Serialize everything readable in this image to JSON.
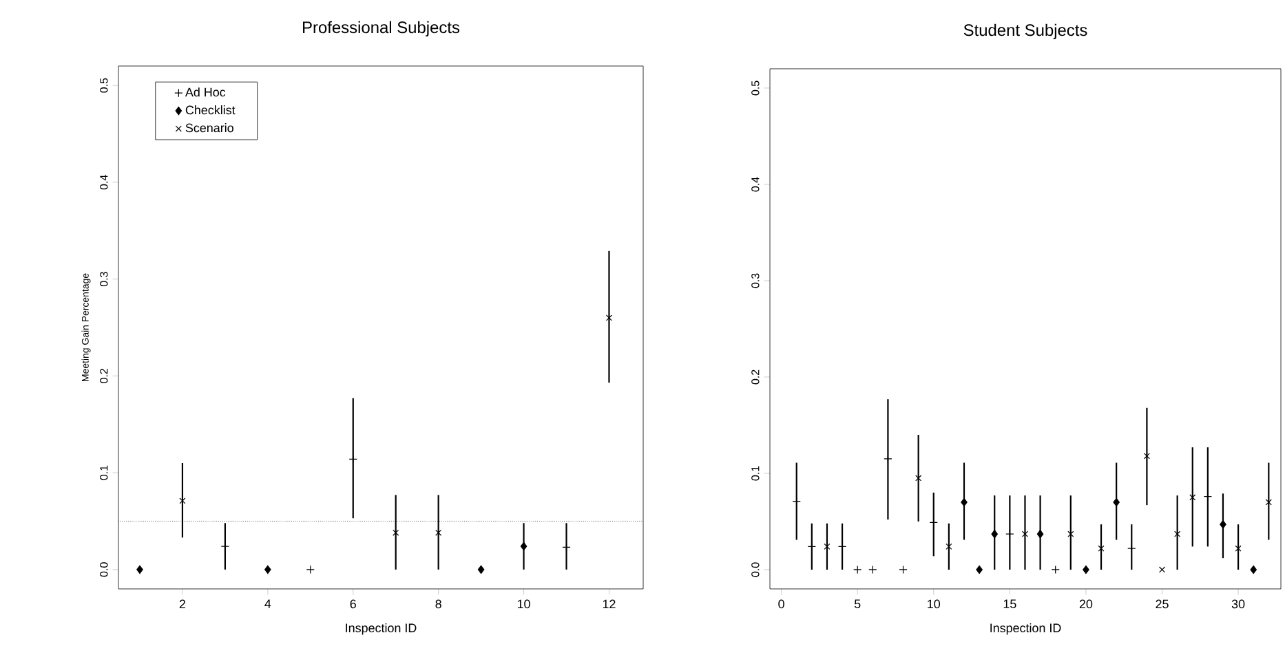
{
  "chart_data": [
    {
      "type": "scatter",
      "title": "Professional Subjects",
      "xlabel": "Inspection ID",
      "ylabel": "Meeting Gain Percentage",
      "xlim": [
        0.5,
        12.8
      ],
      "ylim": [
        -0.02,
        0.52
      ],
      "xticks": [
        2,
        4,
        6,
        8,
        10,
        12
      ],
      "yticks": [
        {
          "value": 0,
          "label": "0.0"
        },
        0.1,
        0.2,
        0.3,
        0.4,
        0.5
      ],
      "legend": "top left",
      "ref_lines": [
        {
          "axis": "y",
          "value": 0.05,
          "line_style": "dotted"
        }
      ],
      "series": [
        {
          "name": "Ad Hoc",
          "color": "#000000",
          "marker": "plus",
          "x": [
            3,
            5,
            6,
            11
          ],
          "values": [
            0.024,
            0,
            0.114,
            0.023
          ],
          "errors": [
            [
              0,
              0.048
            ],
            null,
            [
              0.053,
              0.177
            ],
            [
              0,
              0.048
            ]
          ]
        },
        {
          "name": "Checklist",
          "color": "#000000",
          "marker": "diamond",
          "x": [
            1,
            4,
            9,
            10
          ],
          "values": [
            0,
            0,
            0,
            0.024
          ],
          "errors": [
            null,
            null,
            null,
            [
              0,
              0.048
            ]
          ]
        },
        {
          "name": "Scenario",
          "color": "#000000",
          "marker": "cross",
          "x": [
            2,
            7,
            8,
            12
          ],
          "values": [
            0.071,
            0.038,
            0.038,
            0.26
          ],
          "errors": [
            [
              0.033,
              0.11
            ],
            [
              0,
              0.077
            ],
            [
              0,
              0.077
            ],
            [
              0.193,
              0.329
            ]
          ]
        }
      ]
    },
    {
      "type": "scatter",
      "title": "Student Subjects",
      "xlabel": "Inspection ID",
      "xlim": [
        -0.75,
        32.8
      ],
      "ylim": [
        -0.02,
        0.52
      ],
      "xticks": [
        0,
        5,
        10,
        15,
        20,
        25,
        30
      ],
      "yticks": [
        {
          "value": 0,
          "label": "0.0"
        },
        0.1,
        0.2,
        0.3,
        0.4,
        0.5
      ],
      "series": [
        {
          "color": "#000000",
          "marker": "plus",
          "x": [
            1,
            2,
            4,
            5,
            6,
            7,
            8,
            10,
            15,
            18,
            23,
            28
          ],
          "values": [
            0.071,
            0.024,
            0.024,
            0,
            0,
            0.115,
            0,
            0.049,
            0.037,
            0,
            0.022,
            0.076
          ],
          "errors": [
            [
              0.031,
              0.111
            ],
            [
              0,
              0.048
            ],
            [
              0,
              0.048
            ],
            null,
            null,
            [
              0.052,
              0.177
            ],
            null,
            [
              0.014,
              0.08
            ],
            [
              0,
              0.077
            ],
            null,
            [
              0,
              0.047
            ],
            [
              0.024,
              0.127
            ]
          ]
        },
        {
          "color": "#000000",
          "marker": "diamond",
          "x": [
            12,
            13,
            14,
            17,
            20,
            22,
            29,
            31
          ],
          "values": [
            0.07,
            0,
            0.037,
            0.037,
            0,
            0.07,
            0.047,
            0
          ],
          "errors": [
            [
              0.031,
              0.111
            ],
            null,
            [
              0,
              0.077
            ],
            [
              0,
              0.077
            ],
            null,
            [
              0.031,
              0.111
            ],
            [
              0.012,
              0.079
            ],
            null
          ]
        },
        {
          "color": "#000000",
          "marker": "cross",
          "x": [
            3,
            9,
            11,
            16,
            19,
            21,
            24,
            25,
            26,
            27,
            30,
            32
          ],
          "values": [
            0.024,
            0.095,
            0.024,
            0.037,
            0.037,
            0.022,
            0.118,
            0,
            0.037,
            0.075,
            0.022,
            0.07
          ],
          "errors": [
            [
              0,
              0.048
            ],
            [
              0.05,
              0.14
            ],
            [
              0,
              0.048
            ],
            [
              0,
              0.077
            ],
            [
              0,
              0.077
            ],
            [
              0,
              0.047
            ],
            [
              0.067,
              0.168
            ],
            null,
            [
              0,
              0.077
            ],
            [
              0.024,
              0.127
            ],
            [
              0,
              0.047
            ],
            [
              0.031,
              0.111
            ]
          ]
        }
      ]
    }
  ]
}
